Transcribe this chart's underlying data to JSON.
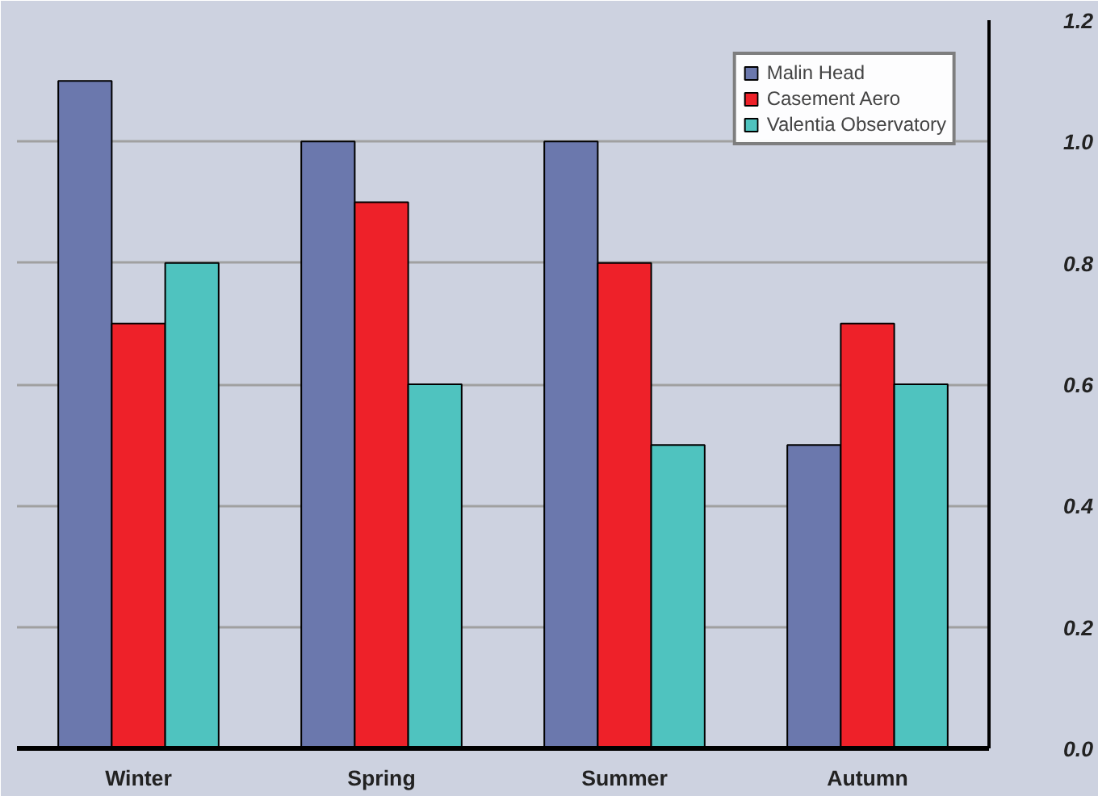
{
  "chart_data": {
    "type": "bar",
    "categories": [
      "Winter",
      "Spring",
      "Summer",
      "Autumn"
    ],
    "series": [
      {
        "name": "Malin Head",
        "color": "#6b78ad",
        "values": [
          1.1,
          1.0,
          1.0,
          0.5
        ]
      },
      {
        "name": "Casement Aero",
        "color": "#ee2129",
        "values": [
          0.7,
          0.9,
          0.8,
          0.7
        ]
      },
      {
        "name": "Valentia Observatory",
        "color": "#4fc3bf",
        "values": [
          0.8,
          0.6,
          0.5,
          0.6
        ]
      }
    ],
    "ylim": [
      0,
      1.2
    ],
    "yticks": [
      {
        "value": 0,
        "label": "0.0"
      },
      {
        "value": 0.2,
        "label": "0.2"
      },
      {
        "value": 0.4,
        "label": "0.4"
      },
      {
        "value": 0.6,
        "label": "0.6"
      },
      {
        "value": 0.8,
        "label": "0.8"
      },
      {
        "value": 1.0,
        "label": "1.0"
      },
      {
        "value": 1.2,
        "label": "1.2"
      }
    ],
    "grid": "y",
    "legend": "top right"
  }
}
